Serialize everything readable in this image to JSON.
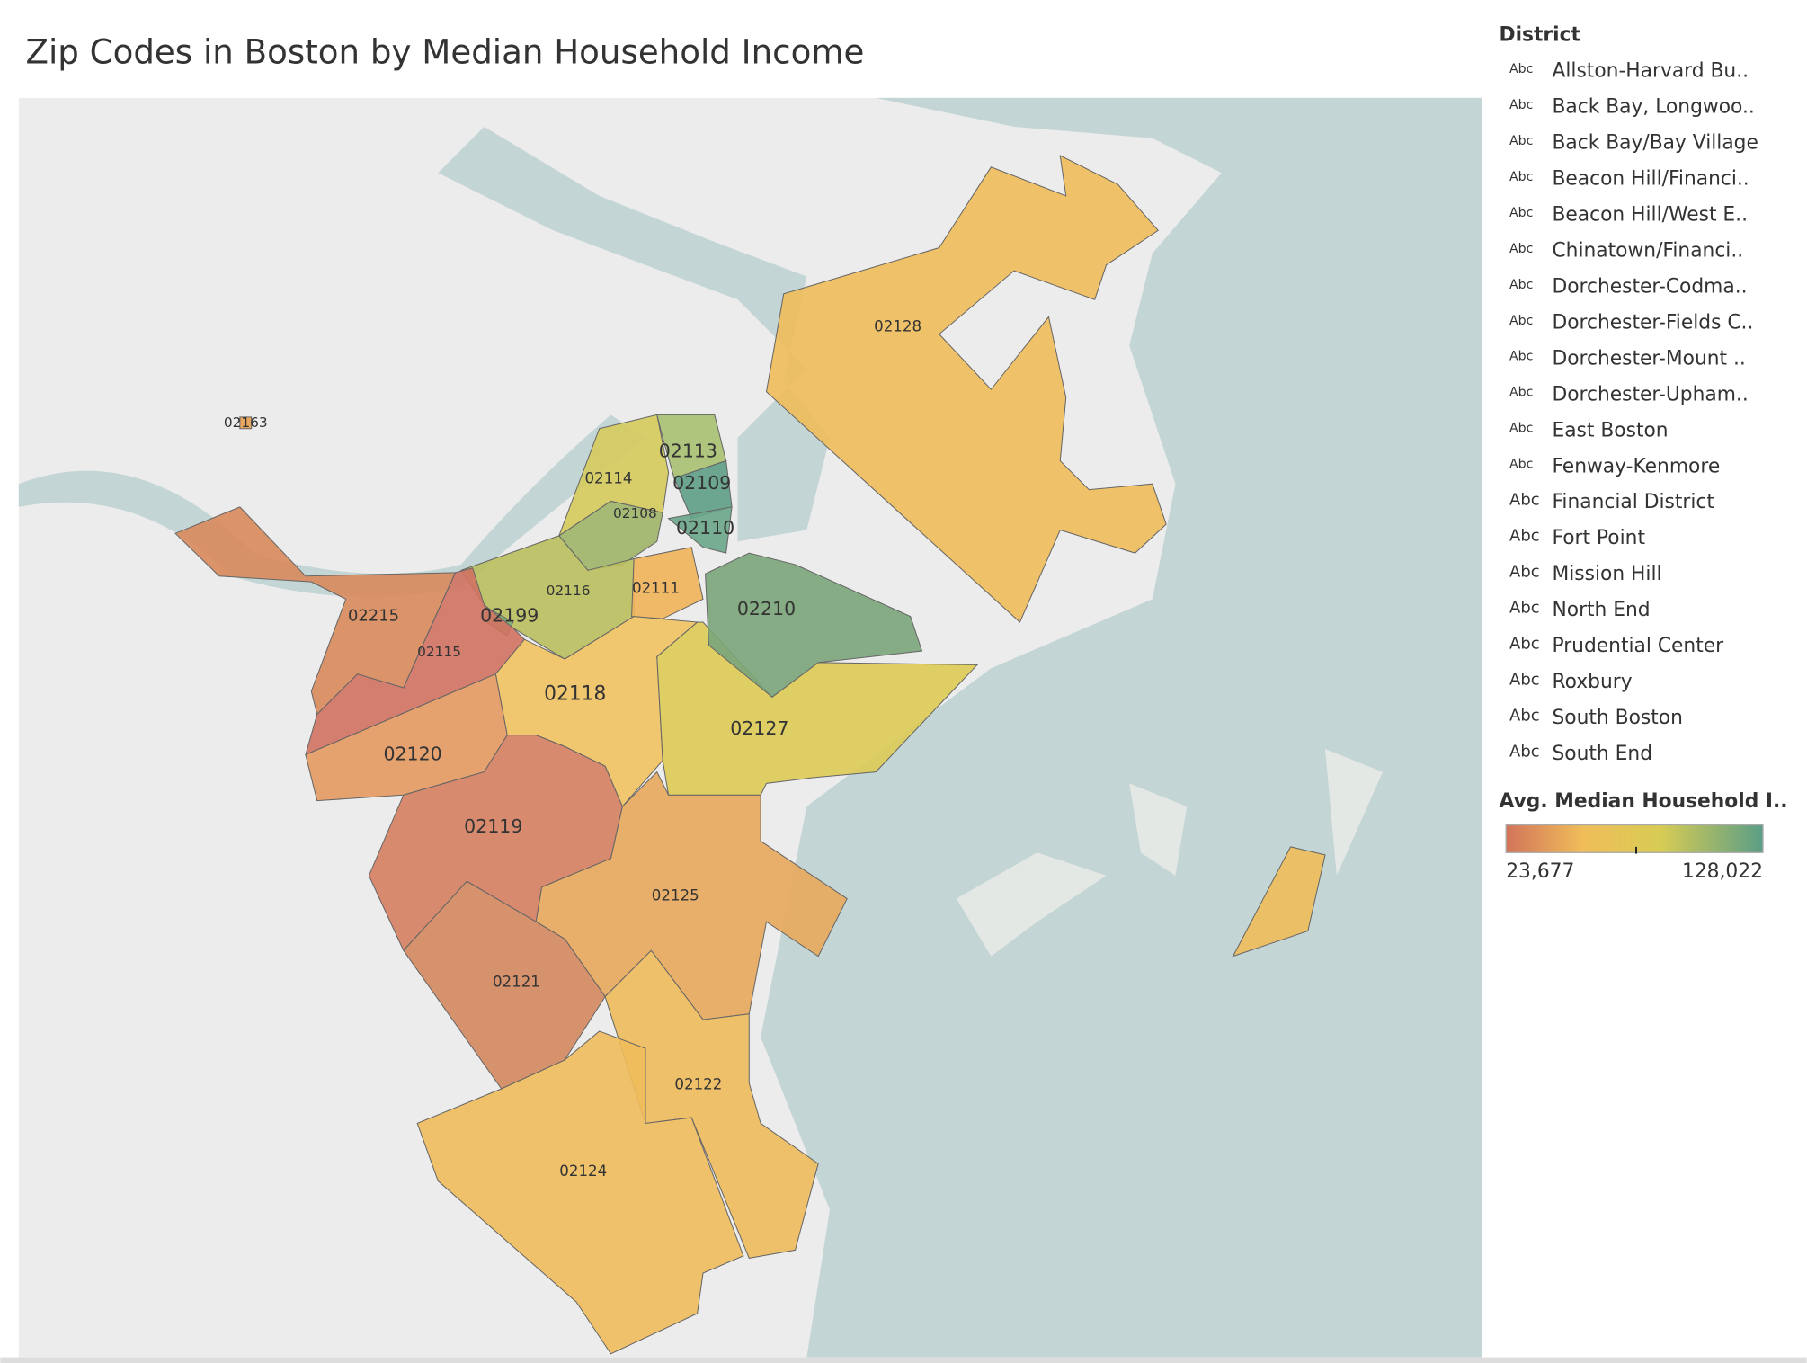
{
  "title": "Zip Codes in Boston by Median Household Income",
  "zips": [
    {
      "label": "02128",
      "color": "#f0bd5a"
    },
    {
      "label": "02163",
      "color": "#e8a050"
    },
    {
      "label": "02114",
      "color": "#d5cb5c"
    },
    {
      "label": "02113",
      "color": "#a9c070"
    },
    {
      "label": "02109",
      "color": "#5f9e86"
    },
    {
      "label": "02110",
      "color": "#6aa689"
    },
    {
      "label": "02108",
      "color": "#9fb468"
    },
    {
      "label": "02116",
      "color": "#b9bf5e"
    },
    {
      "label": "02111",
      "color": "#f0b459"
    },
    {
      "label": "02199",
      "color": "#7fae7a"
    },
    {
      "label": "02215",
      "color": "#d98a5c"
    },
    {
      "label": "02115",
      "color": "#d07262"
    },
    {
      "label": "02118",
      "color": "#f1c262"
    },
    {
      "label": "02120",
      "color": "#e49a60"
    },
    {
      "label": "02119",
      "color": "#d58060"
    },
    {
      "label": "02125",
      "color": "#e8a85c"
    },
    {
      "label": "02127",
      "color": "#ddcb55"
    },
    {
      "label": "02210",
      "color": "#7aa57a"
    },
    {
      "label": "02121",
      "color": "#d4885e"
    },
    {
      "label": "02122",
      "color": "#efbb5c"
    },
    {
      "label": "02124",
      "color": "#f0bc5c"
    },
    {
      "label": "02128",
      "color": "#f0bd5a"
    }
  ],
  "legend": {
    "title": "District",
    "icon": "Abc",
    "items": [
      "Allston-Harvard Bu..",
      "Back Bay, Longwoo..",
      "Back Bay/Bay Village",
      "Beacon Hill/Financi..",
      "Beacon Hill/West E..",
      "Chinatown/Financi..",
      "Dorchester-Codma..",
      "Dorchester-Fields C..",
      "Dorchester-Mount ..",
      "Dorchester-Upham..",
      "East Boston",
      "Fenway-Kenmore",
      "Financial District",
      "Fort Point",
      "Mission Hill",
      "North End",
      "Prudential Center",
      "Roxbury",
      "South Boston",
      "South End"
    ]
  },
  "color_legend": {
    "title": "Avg. Median Household I..",
    "min": {
      "value": 23677,
      "label": "23,677"
    },
    "max": {
      "value": 128022,
      "label": "128,022"
    }
  }
}
